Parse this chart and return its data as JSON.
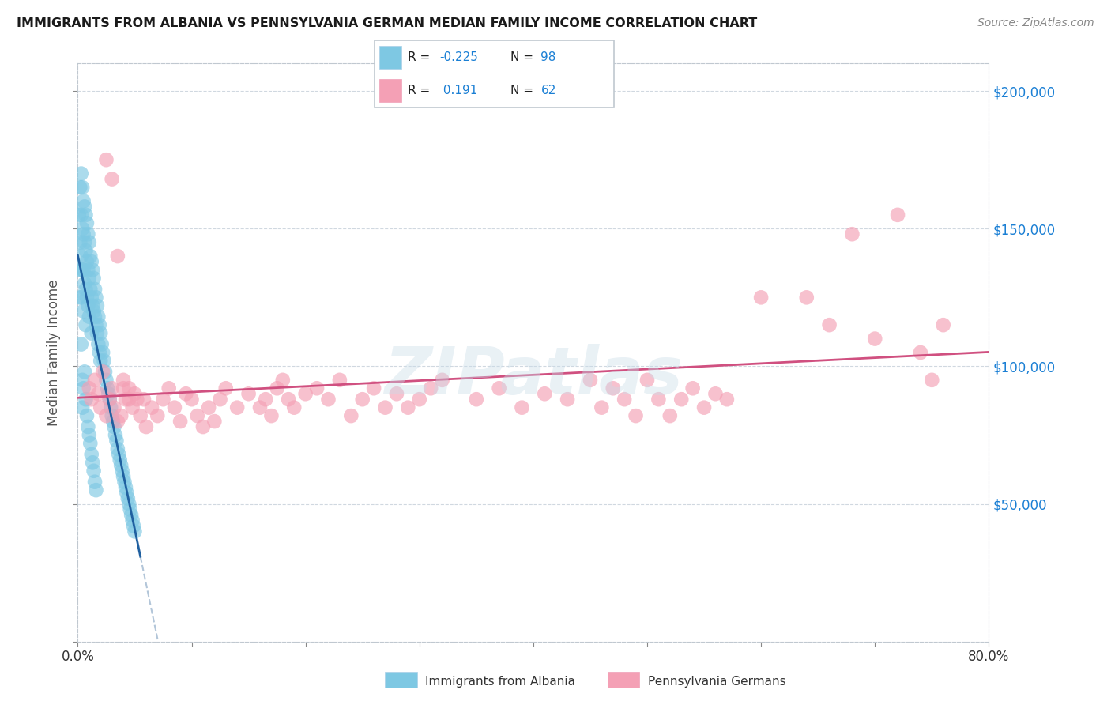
{
  "title": "IMMIGRANTS FROM ALBANIA VS PENNSYLVANIA GERMAN MEDIAN FAMILY INCOME CORRELATION CHART",
  "source": "Source: ZipAtlas.com",
  "ylabel": "Median Family Income",
  "scatter_color_albania": "#7ec8e3",
  "scatter_color_pa": "#f4a0b5",
  "trendline_color_albania": "#2060a0",
  "trendline_color_pa": "#d05080",
  "dashed_color": "#a0b8d0",
  "background_color": "#ffffff",
  "xlim": [
    0.0,
    0.8
  ],
  "ylim": [
    0,
    210000
  ],
  "yticks": [
    0,
    50000,
    100000,
    150000,
    200000
  ],
  "ytick_labels": [
    "",
    "$50,000",
    "$100,000",
    "$150,000",
    "$200,000"
  ],
  "watermark": "ZIPatlas",
  "legend_labels": [
    "Immigrants from Albania",
    "Pennsylvania Germans"
  ],
  "albania_x": [
    0.001,
    0.001,
    0.002,
    0.002,
    0.002,
    0.003,
    0.003,
    0.003,
    0.003,
    0.004,
    0.004,
    0.004,
    0.005,
    0.005,
    0.005,
    0.005,
    0.006,
    0.006,
    0.006,
    0.007,
    0.007,
    0.007,
    0.007,
    0.008,
    0.008,
    0.008,
    0.009,
    0.009,
    0.009,
    0.01,
    0.01,
    0.01,
    0.011,
    0.011,
    0.012,
    0.012,
    0.012,
    0.013,
    0.013,
    0.014,
    0.014,
    0.015,
    0.015,
    0.016,
    0.016,
    0.017,
    0.017,
    0.018,
    0.018,
    0.019,
    0.019,
    0.02,
    0.02,
    0.021,
    0.022,
    0.023,
    0.024,
    0.025,
    0.026,
    0.027,
    0.028,
    0.029,
    0.03,
    0.031,
    0.032,
    0.033,
    0.034,
    0.035,
    0.036,
    0.037,
    0.038,
    0.039,
    0.04,
    0.041,
    0.042,
    0.043,
    0.044,
    0.045,
    0.046,
    0.047,
    0.048,
    0.049,
    0.05,
    0.003,
    0.004,
    0.004,
    0.005,
    0.006,
    0.007,
    0.008,
    0.009,
    0.01,
    0.011,
    0.012,
    0.013,
    0.014,
    0.015,
    0.016
  ],
  "albania_y": [
    155000,
    135000,
    165000,
    145000,
    125000,
    170000,
    155000,
    140000,
    125000,
    165000,
    150000,
    135000,
    160000,
    148000,
    135000,
    120000,
    158000,
    145000,
    130000,
    155000,
    142000,
    128000,
    115000,
    152000,
    138000,
    125000,
    148000,
    135000,
    122000,
    145000,
    132000,
    118000,
    140000,
    128000,
    138000,
    125000,
    112000,
    135000,
    122000,
    132000,
    120000,
    128000,
    118000,
    125000,
    115000,
    122000,
    112000,
    118000,
    108000,
    115000,
    105000,
    112000,
    102000,
    108000,
    105000,
    102000,
    98000,
    95000,
    92000,
    90000,
    88000,
    85000,
    82000,
    80000,
    78000,
    75000,
    73000,
    70000,
    68000,
    66000,
    64000,
    62000,
    60000,
    58000,
    56000,
    54000,
    52000,
    50000,
    48000,
    46000,
    44000,
    42000,
    40000,
    108000,
    95000,
    85000,
    92000,
    98000,
    88000,
    82000,
    78000,
    75000,
    72000,
    68000,
    65000,
    62000,
    58000,
    55000
  ],
  "pa_x": [
    0.01,
    0.012,
    0.015,
    0.018,
    0.02,
    0.022,
    0.025,
    0.028,
    0.03,
    0.032,
    0.035,
    0.038,
    0.04,
    0.042,
    0.045,
    0.048,
    0.05,
    0.052,
    0.055,
    0.058,
    0.06,
    0.065,
    0.07,
    0.075,
    0.08,
    0.085,
    0.09,
    0.095,
    0.1,
    0.105,
    0.11,
    0.115,
    0.12,
    0.125,
    0.13,
    0.14,
    0.15,
    0.16,
    0.165,
    0.17,
    0.175,
    0.18,
    0.185,
    0.19,
    0.2,
    0.21,
    0.22,
    0.23,
    0.24,
    0.25,
    0.26,
    0.27,
    0.28,
    0.29,
    0.3,
    0.31,
    0.32,
    0.025,
    0.03,
    0.035,
    0.04,
    0.045
  ],
  "pa_y": [
    92000,
    88000,
    95000,
    90000,
    85000,
    98000,
    82000,
    88000,
    92000,
    85000,
    80000,
    82000,
    95000,
    88000,
    92000,
    85000,
    90000,
    88000,
    82000,
    88000,
    78000,
    85000,
    82000,
    88000,
    92000,
    85000,
    80000,
    90000,
    88000,
    82000,
    78000,
    85000,
    80000,
    88000,
    92000,
    85000,
    90000,
    85000,
    88000,
    82000,
    92000,
    95000,
    88000,
    85000,
    90000,
    92000,
    88000,
    95000,
    82000,
    88000,
    92000,
    85000,
    90000,
    85000,
    88000,
    92000,
    95000,
    175000,
    168000,
    140000,
    92000,
    88000
  ],
  "pa_x2": [
    0.35,
    0.37,
    0.39,
    0.41,
    0.43,
    0.45,
    0.46,
    0.47,
    0.48,
    0.49,
    0.5,
    0.51,
    0.52,
    0.53,
    0.54,
    0.55,
    0.56,
    0.57,
    0.6,
    0.64,
    0.66,
    0.68,
    0.7,
    0.72,
    0.74,
    0.75,
    0.76
  ],
  "pa_y2": [
    88000,
    92000,
    85000,
    90000,
    88000,
    95000,
    85000,
    92000,
    88000,
    82000,
    95000,
    88000,
    82000,
    88000,
    92000,
    85000,
    90000,
    88000,
    125000,
    125000,
    115000,
    148000,
    110000,
    155000,
    105000,
    95000,
    115000
  ]
}
